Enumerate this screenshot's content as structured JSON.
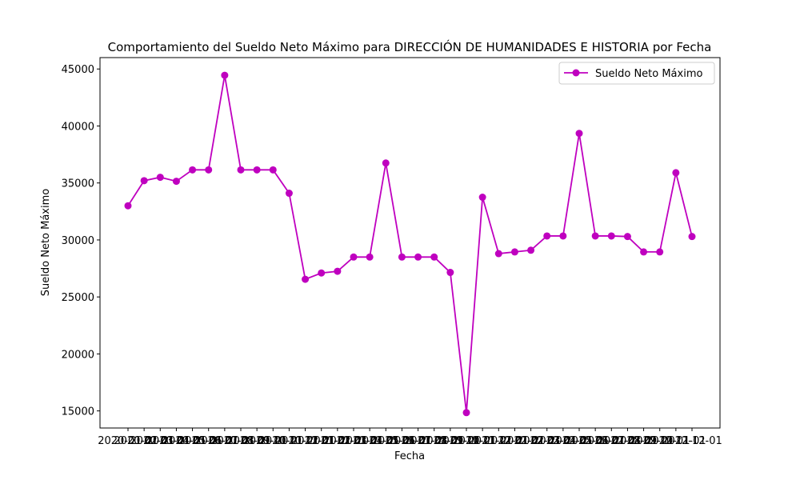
{
  "chart_data": {
    "type": "line",
    "title": "Comportamiento del Sueldo Neto Máximo para DIRECCIÓN DE HUMANIDADES E HISTORIA por Fecha",
    "xlabel": "Fecha",
    "ylabel": "Sueldo Neto Máximo",
    "ylim": [
      13500,
      46000
    ],
    "yticks": [
      15000,
      20000,
      25000,
      30000,
      35000,
      40000,
      45000
    ],
    "grid": false,
    "legend_position": "upper right",
    "colors": {
      "series": "#bf00bf",
      "axes": "#000000",
      "background": "#ffffff"
    },
    "x": [
      "2020-01-01",
      "2020-02-01",
      "2020-03-01",
      "2020-04-01",
      "2020-05-01",
      "2020-06-01",
      "2020-07-01",
      "2020-08-01",
      "2020-09-01",
      "2020-10-01",
      "2020-11-01",
      "2020-12-01",
      "2021-01-01",
      "2021-02-01",
      "2021-03-01",
      "2021-04-01",
      "2021-05-01",
      "2021-06-01",
      "2021-07-01",
      "2021-08-01",
      "2021-09-01",
      "2021-10-01",
      "2021-11-01",
      "2021-12-01",
      "2022-01-01",
      "2022-02-01",
      "2022-03-01",
      "2022-04-01",
      "2022-05-01",
      "2022-06-01",
      "2022-07-01",
      "2022-08-01",
      "2022-09-01",
      "2022-10-01",
      "2022-11-01",
      "2022-12-01"
    ],
    "series": [
      {
        "name": "Sueldo Neto Máximo",
        "values": [
          33000,
          35200,
          35500,
          35150,
          36150,
          36150,
          44450,
          36150,
          36150,
          36150,
          34100,
          26550,
          27100,
          27250,
          28500,
          28500,
          36750,
          28500,
          28500,
          28500,
          27150,
          14850,
          33750,
          28800,
          28950,
          29100,
          30350,
          30350,
          39350,
          30350,
          30350,
          30300,
          28950,
          28950,
          35900,
          30300
        ]
      }
    ]
  }
}
